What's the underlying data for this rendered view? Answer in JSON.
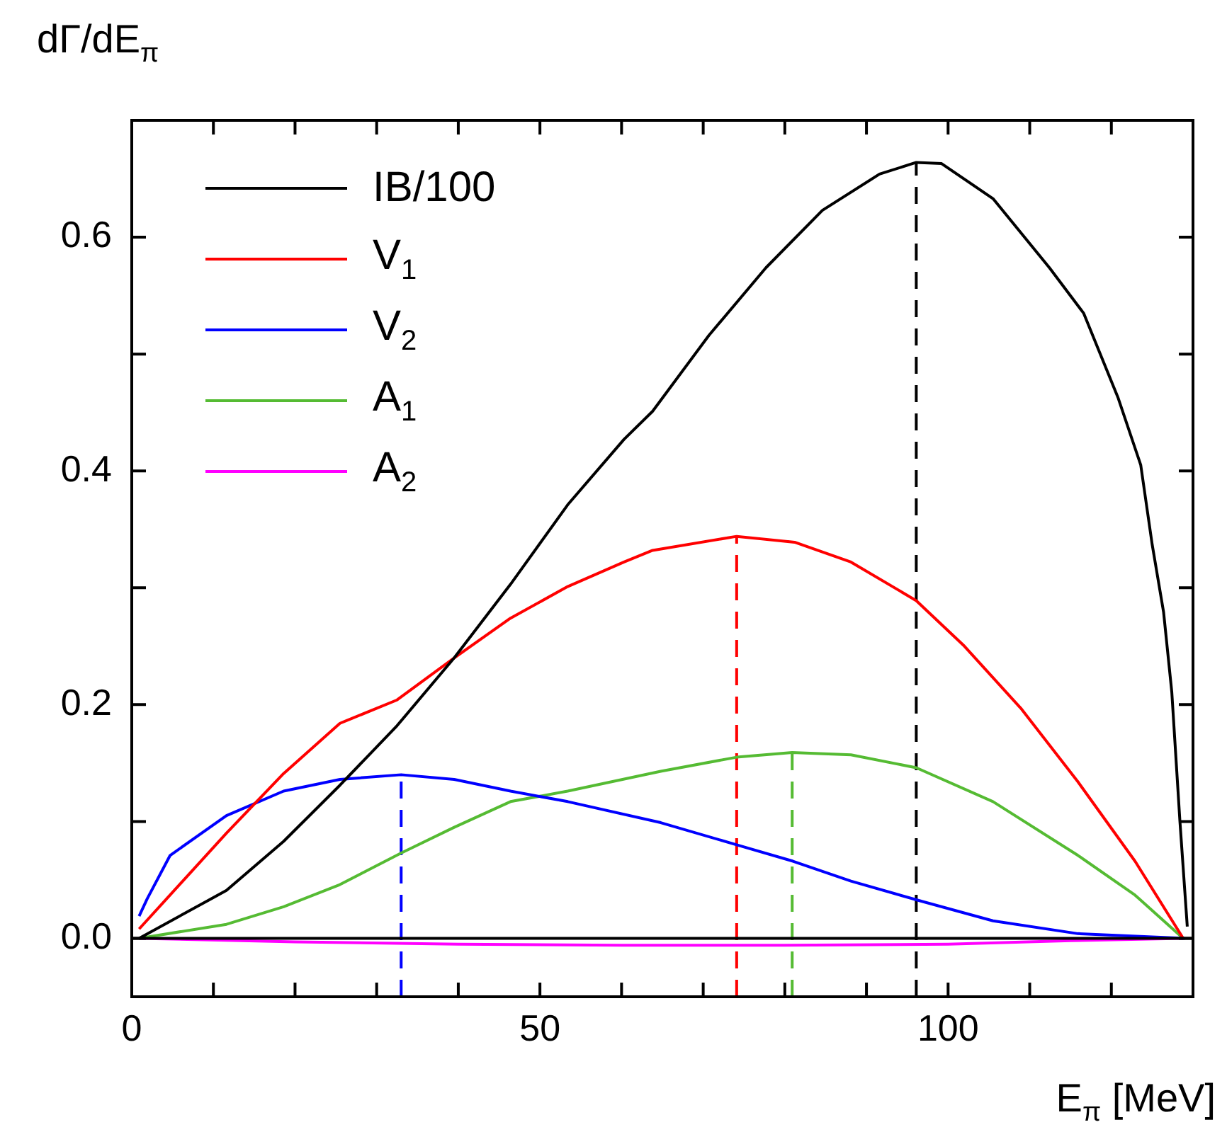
{
  "chart_data": {
    "type": "line",
    "xlabel": "E$_{π}$ [MeV]",
    "ylabel": "dΓ/dE$_{π}$",
    "xlim": [
      0,
      130
    ],
    "ylim": [
      -0.05,
      0.7
    ],
    "xticks": [
      0,
      {
        "value": 10,
        "label": null
      },
      {
        "value": 20,
        "label": null
      },
      {
        "value": 30,
        "label": null
      },
      {
        "value": 40,
        "label": null
      },
      50,
      {
        "value": 60,
        "label": null
      },
      {
        "value": 70,
        "label": null
      },
      {
        "value": 80,
        "label": null
      },
      {
        "value": 90,
        "label": null
      },
      100,
      {
        "value": 110,
        "label": null
      },
      {
        "value": 120,
        "label": null
      }
    ],
    "yticks": [
      {
        "value": 0,
        "label": "0.0"
      },
      {
        "value": 0.1,
        "label": null
      },
      {
        "value": 0.2,
        "label": "0.2"
      },
      {
        "value": 0.3,
        "label": null
      },
      {
        "value": 0.4,
        "label": "0.4"
      },
      {
        "value": 0.5,
        "label": null
      },
      {
        "value": 0.6,
        "label": "0.6"
      }
    ],
    "grid": false,
    "legend": "top left",
    "marker": "none",
    "line_style": "solid",
    "ref_lines": [
      {
        "axis": "y",
        "value": 0,
        "color": "#000000"
      }
    ],
    "series": [
      {
        "name": "IB/100",
        "color": "#000000",
        "x": [
          0.9,
          11.6,
          18.6,
          25.5,
          32.5,
          39.5,
          46.4,
          53.4,
          60.3,
          63.8,
          70.7,
          77.7,
          84.6,
          91.6,
          96.1,
          99.2,
          105.5,
          112.4,
          116.6,
          120.8,
          123.6,
          125.0,
          126.4,
          127.4,
          128.4,
          129.3
        ],
        "values": [
          0,
          0.041,
          0.083,
          0.131,
          0.182,
          0.24,
          0.303,
          0.371,
          0.427,
          0.451,
          0.516,
          0.574,
          0.623,
          0.654,
          0.664,
          0.663,
          0.633,
          0.574,
          0.535,
          0.463,
          0.405,
          0.337,
          0.279,
          0.211,
          0.1,
          0.01
        ]
      },
      {
        "name": "V$_{1}$",
        "color": "#ff0000",
        "x": [
          0.9,
          11.6,
          18.6,
          25.5,
          32.5,
          39.5,
          46.4,
          53.4,
          60.3,
          63.8,
          74.1,
          81.2,
          88.1,
          96.1,
          102.0,
          108.9,
          115.9,
          122.9,
          128.8
        ],
        "values": [
          0.008,
          0.09,
          0.141,
          0.184,
          0.204,
          0.24,
          0.274,
          0.301,
          0.322,
          0.332,
          0.344,
          0.339,
          0.322,
          0.289,
          0.25,
          0.197,
          0.134,
          0.066,
          0
        ]
      },
      {
        "name": "V$_{2}$",
        "color": "#0000ff",
        "x": [
          0.9,
          1.9,
          4.7,
          11.6,
          18.6,
          25.5,
          33.0,
          39.5,
          46.4,
          53.4,
          64.8,
          74.1,
          81.0,
          88.1,
          96.1,
          105.5,
          115.9,
          129.0
        ],
        "values": [
          0.019,
          0.034,
          0.071,
          0.105,
          0.126,
          0.136,
          0.14,
          0.136,
          0.126,
          0.117,
          0.099,
          0.08,
          0.066,
          0.049,
          0.033,
          0.015,
          0.004,
          0
        ]
      },
      {
        "name": "A$_{1}$",
        "color": "#55bb33",
        "x": [
          0.9,
          11.6,
          18.6,
          25.5,
          33.0,
          39.5,
          46.4,
          53.4,
          64.8,
          74.1,
          80.9,
          88.1,
          96.1,
          105.5,
          115.9,
          122.9,
          128.8
        ],
        "values": [
          0,
          0.012,
          0.027,
          0.046,
          0.073,
          0.095,
          0.117,
          0.126,
          0.143,
          0.155,
          0.159,
          0.157,
          0.146,
          0.117,
          0.071,
          0.037,
          0
        ]
      },
      {
        "name": "A$_{2}$",
        "color": "#ff00ff",
        "x": [
          0.9,
          20,
          40,
          60,
          80,
          100,
          115,
          128.8
        ],
        "values": [
          0,
          -0.003,
          -0.005,
          -0.006,
          -0.006,
          -0.005,
          -0.002,
          0
        ]
      },
      {
        "color": "#0000ff",
        "line_style": "dashed",
        "x": [
          33.0,
          33.0
        ],
        "values": [
          -0.05,
          0.14
        ]
      },
      {
        "color": "#ff0000",
        "line_style": "dashed",
        "x": [
          74.1,
          74.1
        ],
        "values": [
          -0.05,
          0.344
        ]
      },
      {
        "color": "#55bb33",
        "line_style": "dashed",
        "x": [
          80.9,
          80.9
        ],
        "values": [
          -0.05,
          0.159
        ]
      },
      {
        "color": "#000000",
        "line_style": "dashed",
        "x": [
          96.1,
          96.1
        ],
        "values": [
          -0.05,
          0.664
        ]
      }
    ]
  }
}
